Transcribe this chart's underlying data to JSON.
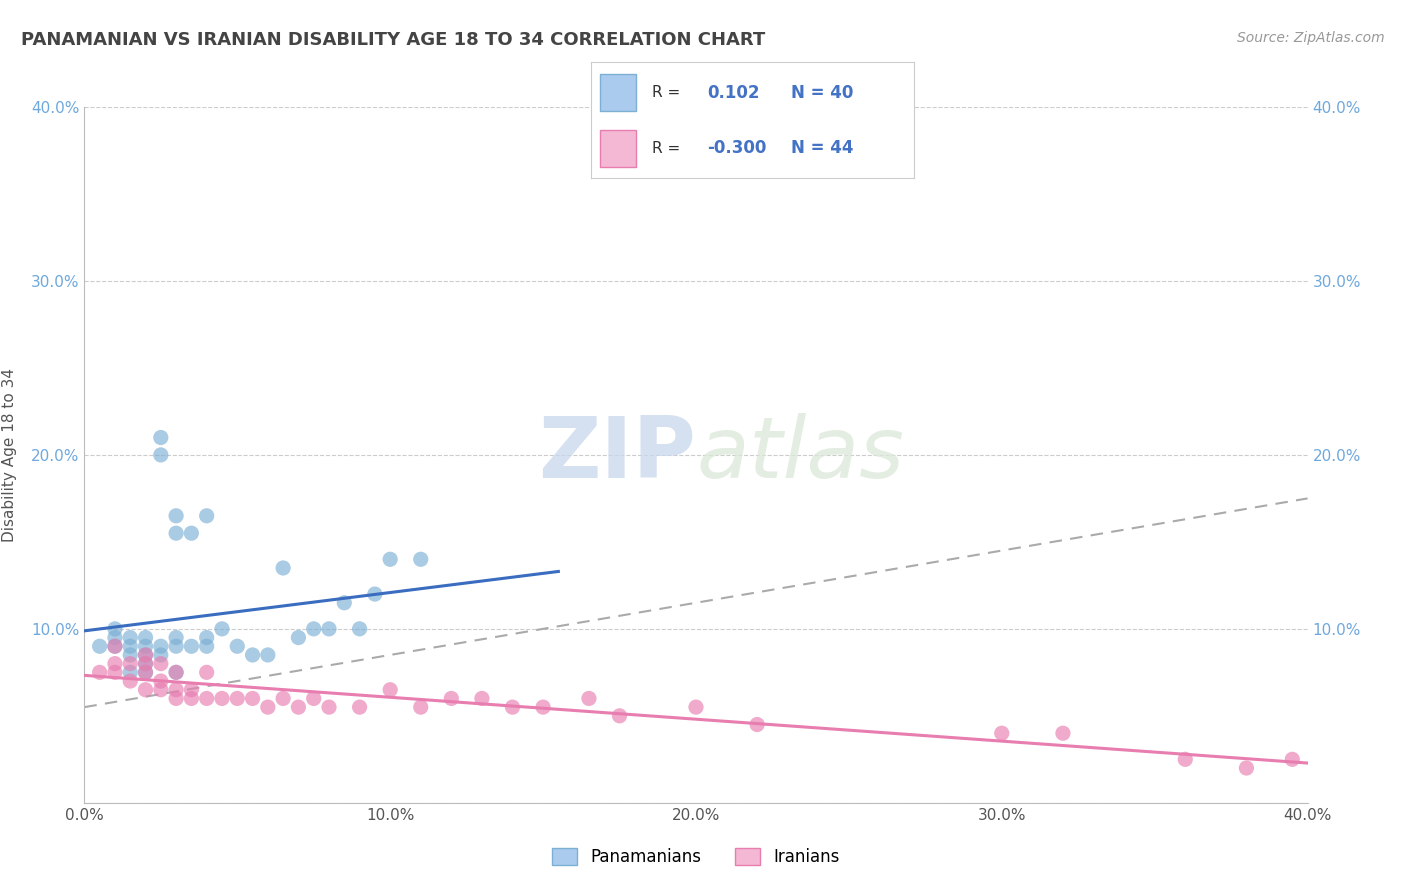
{
  "title": "PANAMANIAN VS IRANIAN DISABILITY AGE 18 TO 34 CORRELATION CHART",
  "source": "Source: ZipAtlas.com",
  "ylabel": "Disability Age 18 to 34",
  "xlim": [
    0.0,
    0.4
  ],
  "ylim": [
    0.0,
    0.4
  ],
  "xtick_vals": [
    0.0,
    0.1,
    0.2,
    0.3,
    0.4
  ],
  "xtick_labels": [
    "0.0%",
    "10.0%",
    "20.0%",
    "30.0%",
    "40.0%"
  ],
  "ytick_vals": [
    0.0,
    0.1,
    0.2,
    0.3,
    0.4
  ],
  "ytick_labels": [
    "",
    "10.0%",
    "20.0%",
    "30.0%",
    "40.0%"
  ],
  "right_ytick_labels": [
    "",
    "10.0%",
    "20.0%",
    "30.0%",
    "40.0%"
  ],
  "pan_R": 0.102,
  "pan_N": 40,
  "ira_R": -0.3,
  "ira_N": 44,
  "pan_color": "#7bafd4",
  "pan_face": "#aacbee",
  "ira_color": "#e87db0",
  "ira_face": "#f4b8d4",
  "trend_pan_color": "#3a6cbf",
  "trend_ira_color": "#e06c9f",
  "trend_dashed_color": "#aaaaaa",
  "background_color": "#ffffff",
  "tick_color_left": "#6fa8dc",
  "tick_color_right": "#6fa8dc",
  "legend_pan_label": "Panamanians",
  "legend_ira_label": "Iranians",
  "pan_x": [
    0.005,
    0.01,
    0.01,
    0.01,
    0.015,
    0.015,
    0.015,
    0.015,
    0.02,
    0.02,
    0.02,
    0.02,
    0.02,
    0.025,
    0.025,
    0.025,
    0.025,
    0.03,
    0.03,
    0.03,
    0.03,
    0.03,
    0.035,
    0.035,
    0.04,
    0.04,
    0.04,
    0.045,
    0.05,
    0.055,
    0.06,
    0.065,
    0.07,
    0.075,
    0.08,
    0.085,
    0.09,
    0.095,
    0.1,
    0.11
  ],
  "pan_y": [
    0.09,
    0.09,
    0.095,
    0.1,
    0.075,
    0.085,
    0.09,
    0.095,
    0.075,
    0.08,
    0.085,
    0.09,
    0.095,
    0.085,
    0.09,
    0.2,
    0.21,
    0.075,
    0.09,
    0.095,
    0.155,
    0.165,
    0.09,
    0.155,
    0.09,
    0.095,
    0.165,
    0.1,
    0.09,
    0.085,
    0.085,
    0.135,
    0.095,
    0.1,
    0.1,
    0.115,
    0.1,
    0.12,
    0.14,
    0.14
  ],
  "ira_x": [
    0.005,
    0.01,
    0.01,
    0.01,
    0.015,
    0.015,
    0.02,
    0.02,
    0.02,
    0.02,
    0.025,
    0.025,
    0.025,
    0.03,
    0.03,
    0.03,
    0.035,
    0.035,
    0.04,
    0.04,
    0.045,
    0.05,
    0.055,
    0.06,
    0.065,
    0.07,
    0.075,
    0.08,
    0.09,
    0.1,
    0.11,
    0.12,
    0.13,
    0.14,
    0.15,
    0.165,
    0.175,
    0.2,
    0.22,
    0.3,
    0.32,
    0.36,
    0.38,
    0.395
  ],
  "ira_y": [
    0.075,
    0.075,
    0.08,
    0.09,
    0.07,
    0.08,
    0.065,
    0.075,
    0.08,
    0.085,
    0.065,
    0.07,
    0.08,
    0.06,
    0.065,
    0.075,
    0.06,
    0.065,
    0.06,
    0.075,
    0.06,
    0.06,
    0.06,
    0.055,
    0.06,
    0.055,
    0.06,
    0.055,
    0.055,
    0.065,
    0.055,
    0.06,
    0.06,
    0.055,
    0.055,
    0.06,
    0.05,
    0.055,
    0.045,
    0.04,
    0.04,
    0.025,
    0.02,
    0.025
  ]
}
